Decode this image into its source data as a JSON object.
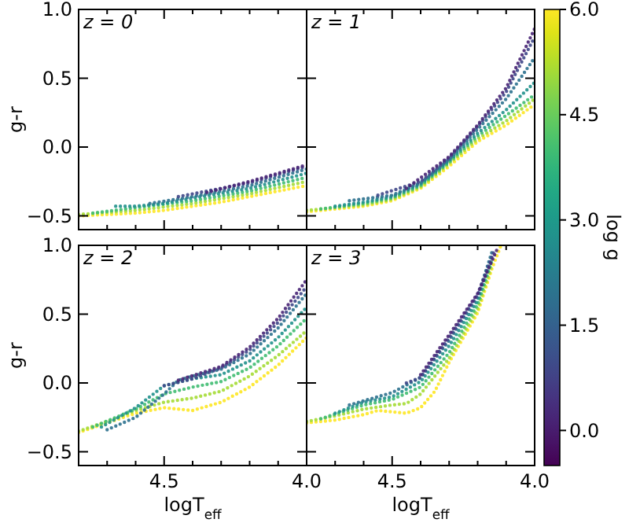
{
  "chart_data": [
    {
      "type": "line",
      "title": "z = 0",
      "ylabel": "g-r",
      "line_style": "dotted",
      "tick_labels": "y",
      "xlim": [
        4.8,
        4.0
      ],
      "ylim": [
        -0.6,
        1.0
      ],
      "xticks": [
        {
          "value": 4.7,
          "label": null
        },
        {
          "value": 4.6,
          "label": null
        },
        {
          "value": 4.5,
          "label": null
        },
        {
          "value": 4.4,
          "label": null
        },
        {
          "value": 4.3,
          "label": null
        },
        {
          "value": 4.2,
          "label": null
        },
        {
          "value": 4.1,
          "label": null
        },
        {
          "value": 4.0,
          "label": null
        }
      ],
      "yticks": [
        {
          "value": -0.5,
          "label": "−0.5"
        },
        {
          "value": 0,
          "label": "0.0"
        },
        0.5,
        {
          "value": 1,
          "label": "1.0"
        }
      ],
      "series": [
        {
          "color": "#fde725",
          "x": [
            4.8,
            4.6,
            4.5,
            4.4,
            4.3,
            4.2,
            4.1,
            4.0
          ],
          "values": [
            -0.5,
            -0.48,
            -0.46,
            -0.43,
            -0.4,
            -0.36,
            -0.32,
            -0.28
          ]
        },
        {
          "color": "#a5db36",
          "x": [
            4.8,
            4.6,
            4.4,
            4.2,
            4.0
          ],
          "values": [
            -0.49,
            -0.46,
            -0.41,
            -0.34,
            -0.25
          ]
        },
        {
          "color": "#40bd72",
          "x": [
            4.75,
            4.6,
            4.4,
            4.2,
            4.0
          ],
          "values": [
            -0.48,
            -0.44,
            -0.39,
            -0.32,
            -0.22
          ]
        },
        {
          "color": "#21918c",
          "x": [
            4.67,
            4.6,
            4.5,
            4.4,
            4.2,
            4.0
          ],
          "values": [
            -0.43,
            -0.43,
            -0.41,
            -0.37,
            -0.3,
            -0.19
          ]
        },
        {
          "color": "#2c718e",
          "x": [
            4.55,
            4.4,
            4.2,
            4.0
          ],
          "values": [
            -0.41,
            -0.36,
            -0.28,
            -0.16
          ]
        },
        {
          "color": "#3f4788",
          "x": [
            4.45,
            4.2,
            4.0
          ],
          "values": [
            -0.36,
            -0.26,
            -0.14
          ]
        },
        {
          "color": "#482575",
          "x": [
            4.35,
            4.2,
            4.0
          ],
          "values": [
            -0.33,
            -0.25,
            -0.13
          ]
        }
      ]
    },
    {
      "type": "line",
      "title": "z = 1",
      "line_style": "dotted",
      "tick_labels": false,
      "xlim": [
        4.8,
        4.0
      ],
      "ylim": [
        -0.6,
        1.0
      ],
      "xticks": [
        {
          "value": 4.7,
          "label": null
        },
        {
          "value": 4.6,
          "label": null
        },
        {
          "value": 4.5,
          "label": null
        },
        {
          "value": 4.4,
          "label": null
        },
        {
          "value": 4.3,
          "label": null
        },
        {
          "value": 4.2,
          "label": null
        },
        {
          "value": 4.1,
          "label": null
        },
        {
          "value": 4.0,
          "label": null
        }
      ],
      "yticks": [
        {
          "value": -0.5,
          "label": null
        },
        {
          "value": 0,
          "label": null
        },
        {
          "value": 0.5,
          "label": null
        },
        {
          "value": 1,
          "label": null
        }
      ],
      "clabel": "log g",
      "clim": [
        -0.5,
        6.0
      ],
      "cticks": [
        {
          "value": 0,
          "label": "0.0"
        },
        1.5,
        {
          "value": 3,
          "label": "3.0"
        },
        4.5,
        {
          "value": 6,
          "label": "6.0"
        }
      ],
      "series": [
        {
          "color": "#fde725",
          "x": [
            4.8,
            4.6,
            4.5,
            4.4,
            4.3,
            4.2,
            4.1,
            4.0
          ],
          "values": [
            -0.47,
            -0.43,
            -0.39,
            -0.3,
            -0.14,
            0.04,
            0.16,
            0.31
          ]
        },
        {
          "color": "#a5db36",
          "x": [
            4.8,
            4.6,
            4.5,
            4.4,
            4.3,
            4.2,
            4.1,
            4.0
          ],
          "values": [
            -0.46,
            -0.42,
            -0.38,
            -0.29,
            -0.12,
            0.06,
            0.19,
            0.35
          ]
        },
        {
          "color": "#40bd72",
          "x": [
            4.75,
            4.6,
            4.5,
            4.4,
            4.3,
            4.2,
            4.1,
            4.0
          ],
          "values": [
            -0.45,
            -0.41,
            -0.37,
            -0.28,
            -0.11,
            0.08,
            0.23,
            0.38
          ]
        },
        {
          "color": "#21918c",
          "x": [
            4.7,
            4.6,
            4.5,
            4.4,
            4.3,
            4.2,
            4.1,
            4.0
          ],
          "values": [
            -0.43,
            -0.4,
            -0.36,
            -0.27,
            -0.1,
            0.1,
            0.27,
            0.47
          ]
        },
        {
          "color": "#2c718e",
          "x": [
            4.65,
            4.5,
            4.4,
            4.3,
            4.2,
            4.1,
            4.0
          ],
          "values": [
            -0.39,
            -0.35,
            -0.26,
            -0.09,
            0.13,
            0.35,
            0.65
          ]
        },
        {
          "color": "#3f4788",
          "x": [
            4.55,
            4.4,
            4.3,
            4.2,
            4.1,
            4.0
          ],
          "values": [
            -0.35,
            -0.25,
            -0.08,
            0.15,
            0.4,
            0.8
          ]
        },
        {
          "color": "#482575",
          "x": [
            4.45,
            4.3,
            4.2,
            4.1,
            4.0
          ],
          "values": [
            -0.3,
            -0.07,
            0.16,
            0.43,
            0.86
          ]
        }
      ]
    },
    {
      "type": "line",
      "title": "z = 2",
      "ylabel": "g-r",
      "xlabel": "logT$_{eff}$",
      "line_style": "dotted",
      "xlim": [
        4.8,
        4.0
      ],
      "ylim": [
        -0.6,
        1.0
      ],
      "xticks": [
        {
          "value": 4.7,
          "label": null
        },
        {
          "value": 4.6,
          "label": null
        },
        4.5,
        {
          "value": 4.4,
          "label": null
        },
        {
          "value": 4.3,
          "label": null
        },
        {
          "value": 4.2,
          "label": null
        },
        {
          "value": 4.1,
          "label": null
        },
        {
          "value": 4.0,
          "label": "4.0"
        }
      ],
      "yticks": [
        {
          "value": -0.5,
          "label": "−0.5"
        },
        {
          "value": 0,
          "label": "0.0"
        },
        0.5,
        {
          "value": 1,
          "label": "1.0"
        }
      ],
      "series": [
        {
          "color": "#fde725",
          "x": [
            4.8,
            4.7,
            4.6,
            4.5,
            4.4,
            4.3,
            4.2,
            4.1,
            4.0
          ],
          "values": [
            -0.36,
            -0.29,
            -0.22,
            -0.18,
            -0.2,
            -0.14,
            -0.03,
            0.13,
            0.33
          ]
        },
        {
          "color": "#a5db36",
          "x": [
            4.8,
            4.7,
            4.6,
            4.5,
            4.4,
            4.3,
            4.2,
            4.1,
            4.0
          ],
          "values": [
            -0.35,
            -0.28,
            -0.2,
            -0.14,
            -0.11,
            -0.06,
            0.05,
            0.2,
            0.38
          ]
        },
        {
          "color": "#40bd72",
          "x": [
            4.75,
            4.6,
            4.5,
            4.4,
            4.3,
            4.2,
            4.1,
            4.0
          ],
          "values": [
            -0.32,
            -0.19,
            -0.08,
            -0.03,
            0.01,
            0.11,
            0.27,
            0.47
          ]
        },
        {
          "color": "#21918c",
          "x": [
            4.72,
            4.6,
            4.5,
            4.4,
            4.3,
            4.2,
            4.1,
            4.0
          ],
          "values": [
            -0.32,
            -0.18,
            -0.02,
            0.03,
            0.06,
            0.16,
            0.33,
            0.55
          ]
        },
        {
          "color": "#2c718e",
          "x": [
            4.7,
            4.6,
            4.5,
            4.45,
            4.4,
            4.3,
            4.2,
            4.1,
            4.0
          ],
          "values": [
            -0.34,
            -0.25,
            -0.08,
            0.02,
            0.05,
            0.1,
            0.21,
            0.4,
            0.65
          ]
        },
        {
          "color": "#3f4788",
          "x": [
            4.5,
            4.4,
            4.3,
            4.2,
            4.1,
            4.0
          ],
          "values": [
            -0.02,
            0.03,
            0.11,
            0.24,
            0.44,
            0.7
          ]
        },
        {
          "color": "#482575",
          "x": [
            4.45,
            4.3,
            4.2,
            4.1,
            4.0
          ],
          "values": [
            0.02,
            0.12,
            0.26,
            0.47,
            0.75
          ]
        }
      ]
    },
    {
      "type": "line",
      "title": "z = 3",
      "xlabel": "logT$_{eff}$",
      "line_style": "dotted",
      "tick_labels": "x",
      "xlim": [
        4.8,
        4.0
      ],
      "ylim": [
        -0.6,
        1.0
      ],
      "xticks": [
        {
          "value": 4.7,
          "label": null
        },
        {
          "value": 4.6,
          "label": null
        },
        4.5,
        {
          "value": 4.4,
          "label": null
        },
        {
          "value": 4.3,
          "label": null
        },
        {
          "value": 4.2,
          "label": null
        },
        {
          "value": 4.1,
          "label": null
        },
        {
          "value": 4.0,
          "label": "4.0"
        }
      ],
      "yticks": [
        {
          "value": -0.5,
          "label": null
        },
        {
          "value": 0,
          "label": null
        },
        {
          "value": 0.5,
          "label": null
        },
        {
          "value": 1,
          "label": null
        }
      ],
      "series": [
        {
          "color": "#fde725",
          "x": [
            4.8,
            4.7,
            4.6,
            4.55,
            4.5,
            4.45,
            4.4,
            4.35,
            4.3,
            4.2,
            4.15,
            4.12
          ],
          "values": [
            -0.29,
            -0.27,
            -0.23,
            -0.2,
            -0.21,
            -0.22,
            -0.18,
            -0.06,
            0.15,
            0.51,
            0.83,
            0.99
          ]
        },
        {
          "color": "#a5db36",
          "x": [
            4.8,
            4.7,
            4.6,
            4.5,
            4.45,
            4.4,
            4.3,
            4.2,
            4.15
          ],
          "values": [
            -0.28,
            -0.24,
            -0.19,
            -0.16,
            -0.15,
            -0.08,
            0.18,
            0.54,
            0.86
          ]
        },
        {
          "color": "#40bd72",
          "x": [
            4.75,
            4.6,
            4.5,
            4.4,
            4.3,
            4.2,
            4.15
          ],
          "values": [
            -0.26,
            -0.16,
            -0.12,
            -0.03,
            0.22,
            0.57,
            0.89
          ]
        },
        {
          "color": "#21918c",
          "x": [
            4.7,
            4.6,
            4.5,
            4.4,
            4.3,
            4.2,
            4.15
          ],
          "values": [
            -0.22,
            -0.14,
            -0.1,
            0.01,
            0.27,
            0.6,
            0.92
          ]
        },
        {
          "color": "#2c718e",
          "x": [
            4.65,
            4.55,
            4.5,
            4.4,
            4.3,
            4.2,
            4.15
          ],
          "values": [
            -0.16,
            -0.1,
            -0.07,
            0.04,
            0.31,
            0.63,
            0.95
          ]
        },
        {
          "color": "#3f4788",
          "x": [
            4.45,
            4.4,
            4.3,
            4.2,
            4.14
          ],
          "values": [
            0.0,
            0.04,
            0.33,
            0.64,
            0.97
          ]
        },
        {
          "color": "#482575",
          "x": [
            4.4,
            4.3,
            4.2,
            4.13
          ],
          "values": [
            0.06,
            0.35,
            0.65,
            0.98
          ]
        }
      ]
    }
  ]
}
